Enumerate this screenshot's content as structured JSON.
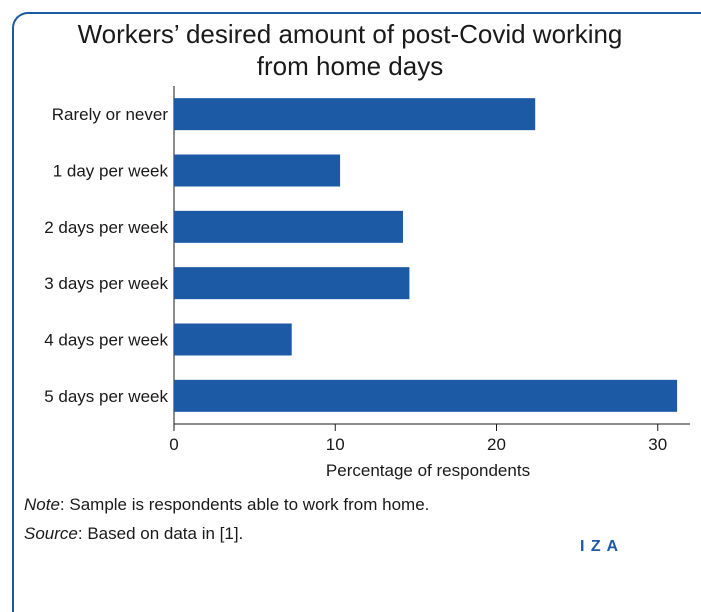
{
  "chart_data": {
    "type": "bar",
    "orientation": "horizontal",
    "title": "Workers’ desired amount of post-Covid working from home days",
    "title_lines": [
      "Workers’ desired amount of post-Covid working",
      "from home days"
    ],
    "categories": [
      "Rarely or never",
      "1 day per week",
      "2 days per week",
      "3 days per week",
      "4 days per week",
      "5 days per week"
    ],
    "values": [
      22.4,
      10.3,
      14.2,
      14.6,
      7.3,
      31.2
    ],
    "xlabel": "Percentage of respondents",
    "ylabel": "",
    "xlim": [
      0,
      32
    ],
    "xticks": [
      0,
      10,
      20,
      30
    ],
    "grid": false,
    "bar_color": "#1d5aa6"
  },
  "footer": {
    "note_label": "Note",
    "note_text": ": Sample is respondents able to work from home.",
    "source_label": "Source",
    "source_text": ": Based on data in [1]."
  },
  "brand": {
    "logo_text": "I Z A",
    "color": "#1d5aa6"
  }
}
